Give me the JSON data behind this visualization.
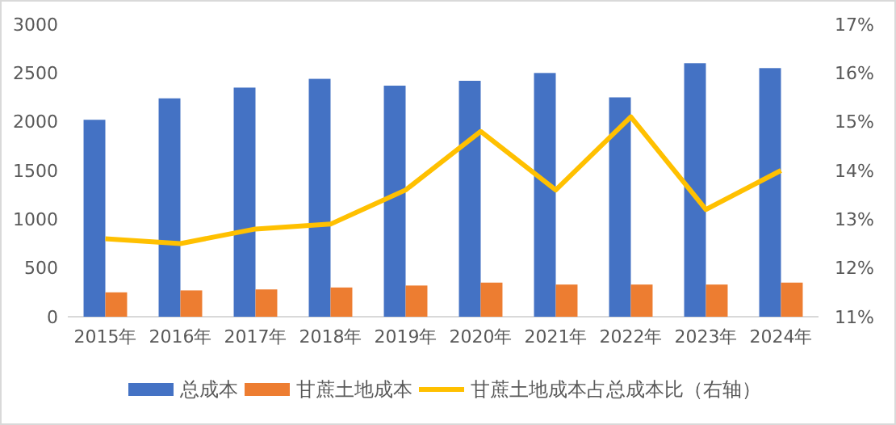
{
  "chart_data": {
    "type": "bar",
    "categories": [
      "2015年",
      "2016年",
      "2017年",
      "2018年",
      "2019年",
      "2020年",
      "2021年",
      "2022年",
      "2023年",
      "2024年"
    ],
    "series": [
      {
        "name": "总成本",
        "color": "#4472c4",
        "values": [
          2020,
          2240,
          2350,
          2440,
          2370,
          2420,
          2500,
          2250,
          2600,
          2550
        ]
      },
      {
        "name": "甘蔗土地成本",
        "color": "#ed7d31",
        "values": [
          250,
          270,
          280,
          300,
          320,
          350,
          330,
          330,
          330,
          350
        ]
      },
      {
        "name": "甘蔗土地成本占总成本比（右轴）",
        "color": "#ffc000",
        "type": "line",
        "axis": "y2",
        "values": [
          12.6,
          12.5,
          12.8,
          12.9,
          13.6,
          14.8,
          13.6,
          15.1,
          13.2,
          14.0
        ]
      }
    ],
    "ylim": [
      0,
      3000
    ],
    "yticks": [
      0,
      500,
      1000,
      1500,
      2000,
      2500,
      3000
    ],
    "y2lim": [
      11,
      17
    ],
    "y2ticks": [
      {
        "value": 11,
        "label": "11%"
      },
      {
        "value": 12,
        "label": "12%"
      },
      {
        "value": 13,
        "label": "13%"
      },
      {
        "value": 14,
        "label": "14%"
      },
      {
        "value": 15,
        "label": "15%"
      },
      {
        "value": 16,
        "label": "16%"
      },
      {
        "value": 17,
        "label": "17%"
      }
    ],
    "marker": "none",
    "legend": "bottom"
  }
}
